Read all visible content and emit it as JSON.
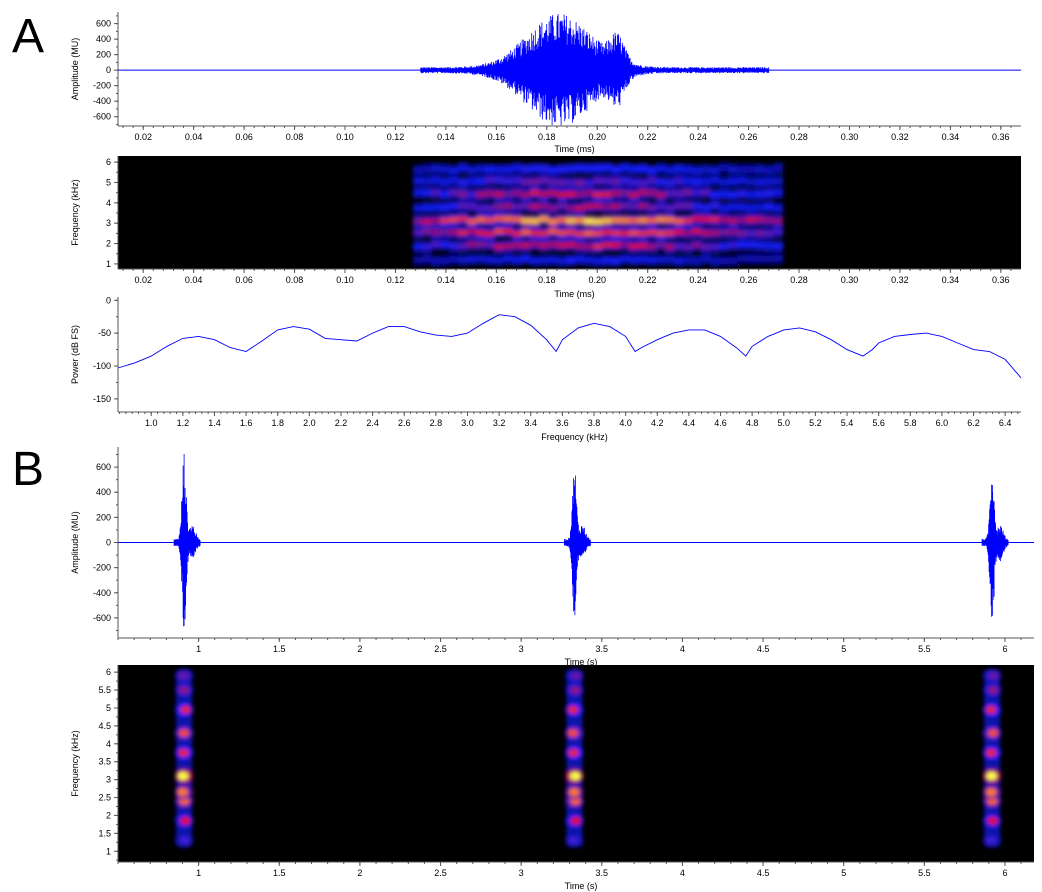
{
  "colors": {
    "trace": "#0000ff",
    "spectrogram_background": "#000000",
    "axis": "#555555"
  },
  "panel_labels": [
    "A",
    "B"
  ],
  "chart_data": [
    {
      "id": "a-waveform",
      "type": "line",
      "xlabel": "Time (ms)",
      "ylabel": "Amplitude (MU)",
      "xlim": [
        0.01,
        0.368
      ],
      "ylim": [
        -720,
        750
      ],
      "x_ticks": [
        "0.02",
        "0.04",
        "0.06",
        "0.08",
        "0.10",
        "0.12",
        "0.14",
        "0.16",
        "0.18",
        "0.20",
        "0.22",
        "0.24",
        "0.26",
        "0.28",
        "0.30",
        "0.32",
        "0.34",
        "0.36"
      ],
      "y_ticks": [
        "600",
        "400",
        "200",
        "0",
        "-200",
        "-400",
        "-600"
      ],
      "signal": {
        "start": 0.13,
        "end": 0.268,
        "low_amplitude": 40,
        "bursts": [
          {
            "center": 0.185,
            "width": 0.018,
            "peak": 700
          },
          {
            "center": 0.208,
            "width": 0.004,
            "peak": 320
          }
        ]
      }
    },
    {
      "id": "a-spectrogram",
      "type": "heatmap",
      "xlabel": "Time (ms)",
      "ylabel": "Frequency (kHz)",
      "xlim": [
        0.01,
        0.368
      ],
      "ylim": [
        0.75,
        6.3
      ],
      "x_ticks": [
        "0.02",
        "0.04",
        "0.06",
        "0.08",
        "0.10",
        "0.12",
        "0.14",
        "0.16",
        "0.18",
        "0.20",
        "0.22",
        "0.24",
        "0.26",
        "0.28",
        "0.30",
        "0.32",
        "0.34",
        "0.36"
      ],
      "y_ticks": [
        "1",
        "2",
        "3",
        "4",
        "5",
        "6"
      ],
      "signal": {
        "start": 0.127,
        "end": 0.272
      },
      "bands": [
        {
          "freq": 1.2,
          "intensity": 0.3
        },
        {
          "freq": 1.9,
          "intensity": 0.62
        },
        {
          "freq": 2.55,
          "intensity": 0.82
        },
        {
          "freq": 3.15,
          "intensity": 1.0
        },
        {
          "freq": 3.8,
          "intensity": 0.55
        },
        {
          "freq": 4.45,
          "intensity": 0.6
        },
        {
          "freq": 5.05,
          "intensity": 0.45
        },
        {
          "freq": 5.65,
          "intensity": 0.35
        }
      ]
    },
    {
      "id": "a-power-spectrum",
      "type": "line",
      "xlabel": "Frequency (kHz)",
      "ylabel": "Power (dB FS)",
      "xlim": [
        0.79,
        6.5
      ],
      "ylim": [
        -170,
        5
      ],
      "x_ticks": [
        "1.0",
        "1.2",
        "1.4",
        "1.6",
        "1.8",
        "2.0",
        "2.2",
        "2.4",
        "2.6",
        "2.8",
        "3.0",
        "3.2",
        "3.4",
        "3.6",
        "3.8",
        "4.0",
        "4.2",
        "4.4",
        "4.6",
        "4.8",
        "5.0",
        "5.2",
        "5.4",
        "5.6",
        "5.8",
        "6.0",
        "6.2",
        "6.4"
      ],
      "y_ticks": [
        "0",
        "-50",
        "-100",
        "-150"
      ],
      "x": [
        0.79,
        0.9,
        1.0,
        1.1,
        1.2,
        1.3,
        1.4,
        1.5,
        1.6,
        1.7,
        1.8,
        1.9,
        2.0,
        2.1,
        2.2,
        2.3,
        2.4,
        2.5,
        2.6,
        2.7,
        2.8,
        2.9,
        3.0,
        3.1,
        3.2,
        3.3,
        3.4,
        3.5,
        3.56,
        3.6,
        3.7,
        3.8,
        3.9,
        4.0,
        4.06,
        4.1,
        4.2,
        4.3,
        4.4,
        4.5,
        4.6,
        4.7,
        4.76,
        4.8,
        4.9,
        5.0,
        5.1,
        5.2,
        5.3,
        5.4,
        5.5,
        5.56,
        5.6,
        5.7,
        5.8,
        5.9,
        6.0,
        6.1,
        6.2,
        6.3,
        6.4,
        6.5
      ],
      "y": [
        -103,
        -95,
        -85,
        -70,
        -58,
        -55,
        -60,
        -72,
        -78,
        -62,
        -45,
        -40,
        -44,
        -58,
        -60,
        -62,
        -50,
        -40,
        -40,
        -48,
        -53,
        -55,
        -50,
        -35,
        -22,
        -25,
        -38,
        -60,
        -78,
        -60,
        -42,
        -35,
        -40,
        -55,
        -78,
        -72,
        -60,
        -50,
        -45,
        -45,
        -55,
        -72,
        -85,
        -70,
        -55,
        -45,
        -42,
        -48,
        -60,
        -75,
        -85,
        -75,
        -65,
        -55,
        -52,
        -50,
        -55,
        -65,
        -75,
        -78,
        -90,
        -118
      ]
    },
    {
      "id": "b-waveform",
      "type": "line",
      "xlabel": "Time (s)",
      "ylabel": "Amplitude (MU)",
      "xlim": [
        0.5,
        6.18
      ],
      "ylim": [
        -760,
        760
      ],
      "x_ticks": [
        "1",
        "1.5",
        "2",
        "2.5",
        "3",
        "3.5",
        "4",
        "4.5",
        "5",
        "5.5",
        "6"
      ],
      "y_ticks": [
        "600",
        "400",
        "200",
        "0",
        "-200",
        "-400",
        "-600"
      ],
      "calls": [
        0.91,
        3.33,
        5.92
      ],
      "call_peaks": [
        700,
        600,
        650
      ]
    },
    {
      "id": "b-spectrogram",
      "type": "heatmap",
      "xlabel": "Time (s)",
      "ylabel": "Frequency (kHz)",
      "xlim": [
        0.5,
        6.18
      ],
      "ylim": [
        0.7,
        6.2
      ],
      "x_ticks": [
        "1",
        "1.5",
        "2",
        "2.5",
        "3",
        "3.5",
        "4",
        "4.5",
        "5",
        "5.5",
        "6"
      ],
      "y_ticks": [
        "1",
        "1.5",
        "2",
        "2.5",
        "3",
        "3.5",
        "4",
        "4.5",
        "5",
        "5.5",
        "6"
      ],
      "calls": [
        0.91,
        3.33,
        5.92
      ],
      "blobs": [
        {
          "freq": 1.3,
          "intensity": 0.35
        },
        {
          "freq": 1.85,
          "intensity": 0.55
        },
        {
          "freq": 2.4,
          "intensity": 0.75
        },
        {
          "freq": 2.65,
          "intensity": 0.8
        },
        {
          "freq": 3.1,
          "intensity": 1.0
        },
        {
          "freq": 3.75,
          "intensity": 0.6
        },
        {
          "freq": 4.3,
          "intensity": 0.7
        },
        {
          "freq": 4.95,
          "intensity": 0.6
        },
        {
          "freq": 5.5,
          "intensity": 0.45
        },
        {
          "freq": 5.9,
          "intensity": 0.4
        }
      ]
    }
  ]
}
